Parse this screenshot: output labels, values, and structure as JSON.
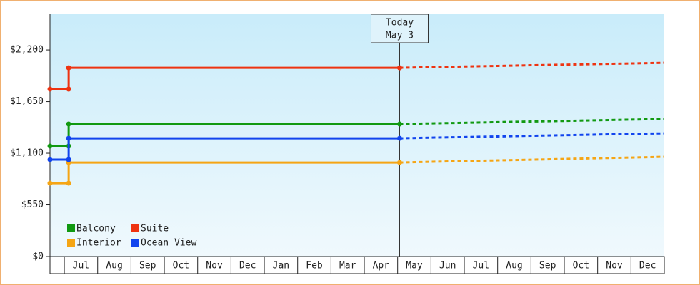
{
  "chart_data": {
    "type": "line",
    "categories": [
      "Jul",
      "Aug",
      "Sep",
      "Oct",
      "Nov",
      "Dec",
      "Jan",
      "Feb",
      "Mar",
      "Apr",
      "May",
      "Jun",
      "Jul",
      "Aug",
      "Sep",
      "Oct",
      "Nov",
      "Dec"
    ],
    "x": [
      -0.43,
      0.13,
      0.13,
      10.06,
      11,
      12,
      13,
      14,
      15,
      16,
      17,
      18
    ],
    "xlim": [
      -0.43,
      18
    ],
    "ylim": [
      0,
      2580
    ],
    "yticks": [
      {
        "value": 0,
        "label": "$0"
      },
      {
        "value": 550,
        "label": "$550"
      },
      {
        "value": 1100,
        "label": "$1,100"
      },
      {
        "value": 1650,
        "label": "$1,650"
      },
      {
        "value": 2200,
        "label": "$2,200"
      }
    ],
    "today": {
      "value": 10.06,
      "lines": [
        "Today",
        "May 3"
      ]
    },
    "legend": "bottom-left",
    "series": [
      {
        "name": "Balcony",
        "color": "#119911",
        "values": [
          1176,
          1176,
          1411,
          1411,
          1418,
          1424,
          1431,
          1438,
          1444,
          1451,
          1458,
          1464
        ]
      },
      {
        "name": "Suite",
        "color": "#ee3311",
        "values": [
          1783,
          1783,
          2010,
          2010,
          2017,
          2024,
          2030,
          2037,
          2043,
          2050,
          2056,
          2063
        ]
      },
      {
        "name": "Interior",
        "color": "#f5a514",
        "values": [
          781,
          781,
          1001,
          1001,
          1009,
          1016,
          1024,
          1031,
          1039,
          1047,
          1054,
          1062
        ]
      },
      {
        "name": "Ocean View",
        "color": "#1144ee",
        "values": [
          1032,
          1032,
          1259,
          1259,
          1266,
          1272,
          1279,
          1286,
          1292,
          1299,
          1306,
          1312
        ]
      }
    ]
  }
}
